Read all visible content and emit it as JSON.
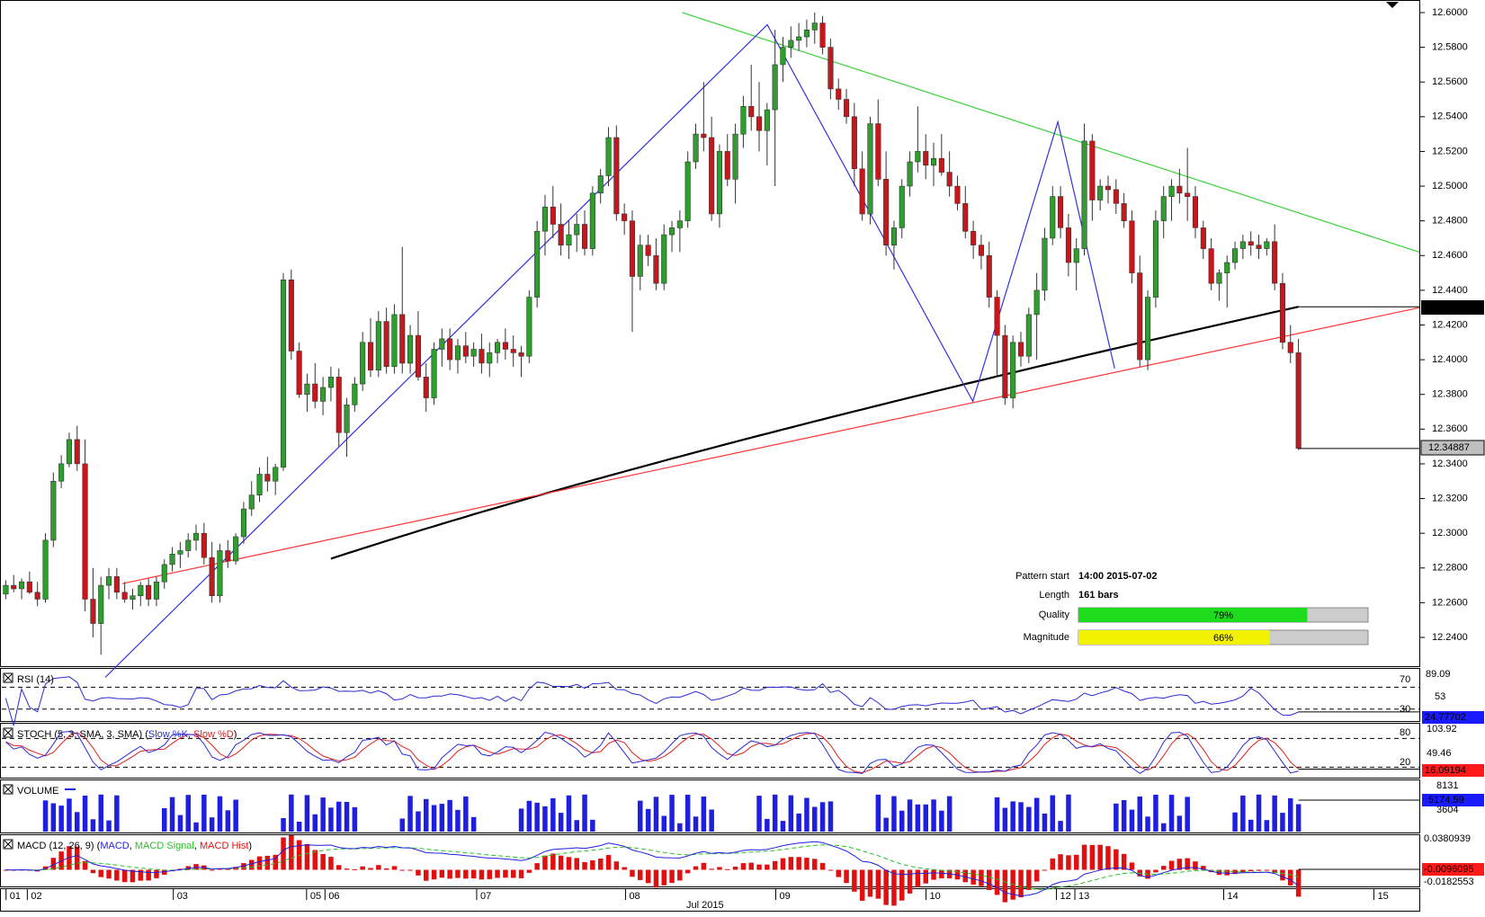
{
  "colors": {
    "bull": "#2e9e2e",
    "bear": "#c8161d",
    "resistance": "#3ad23a",
    "support": "#ff3333",
    "pattern": "#3333dd",
    "sma": "#000000",
    "rsi": "#2b2bd6",
    "stoch_k": "#2b2bd6",
    "stoch_d": "#e02020",
    "volume": "#1f1fe0",
    "macd": "#1f1fe0",
    "macd_signal": "#27c227",
    "macd_hist": "#e01010",
    "quality_fill": "#1cdc1c",
    "magnitude_fill": "#f2f200",
    "bar_bg": "#cccccc"
  },
  "price_axis": {
    "ticks": [
      "12.6000",
      "12.5800",
      "12.5600",
      "12.5400",
      "12.5200",
      "12.5000",
      "12.4800",
      "12.4600",
      "12.4400",
      "12.4200",
      "12.4000",
      "12.3800",
      "12.3600",
      "12.3400",
      "12.3200",
      "12.3000",
      "12.2800",
      "12.2600",
      "12.2400"
    ],
    "current_label": "12.43050",
    "last_label": "12.34887"
  },
  "pattern_info": {
    "start_label": "Pattern start",
    "start_value": "14:00 2015-07-02",
    "length_label": "Length",
    "length_value": "161 bars",
    "quality_label": "Quality",
    "quality_value": "79%",
    "quality": 0.79,
    "magnitude_label": "Magnitude",
    "magnitude_value": "66%",
    "magnitude": 0.66
  },
  "rsi": {
    "title": "RSI (14)",
    "levels": [
      "70",
      "30"
    ],
    "axis": [
      "89.09",
      "53"
    ],
    "value": "24.77702"
  },
  "stoch": {
    "title": "STOCH (5, 3, SMA, 3, SMA)",
    "k_label": "Slow %K",
    "d_label": "Slow %D",
    "levels": [
      "80",
      "20"
    ],
    "axis": [
      "103.92",
      "49.46"
    ],
    "value": "16.09194"
  },
  "volume": {
    "title": "VOLUME",
    "axis": [
      "8131",
      "3604"
    ],
    "value": "5174.59"
  },
  "macd": {
    "title": "MACD (12, 26, 9)",
    "macd_label": "MACD",
    "signal_label": "MACD Signal",
    "hist_label": "MACD Hist",
    "axis_top": "0.0380939",
    "axis_bottom": "-0.0182553",
    "value": "-0.0096095"
  },
  "x_axis": {
    "ticks": [
      "01",
      "02",
      "03",
      "05",
      "06",
      "07",
      "08",
      "09",
      "10",
      "12",
      "13",
      "14",
      "15"
    ],
    "month_label": "Jul 2015"
  },
  "chart_data": {
    "type": "candlestick",
    "symbol_price_range": [
      12.232,
      12.605
    ],
    "last_price": 12.34887,
    "sma_current": 12.4305,
    "trendlines": {
      "resistance": {
        "from": {
          "bar": 0.48,
          "price": 12.6
        },
        "to": {
          "bar": 1.0,
          "price": 12.462
        }
      },
      "support": {
        "from": {
          "bar": 0.085,
          "price": 12.271
        },
        "to": {
          "bar": 1.0,
          "price": 12.43
        }
      }
    },
    "zigzag": [
      {
        "bar": 0.073,
        "price": 12.217
      },
      {
        "bar": 0.54,
        "price": 12.593
      },
      {
        "bar": 0.685,
        "price": 12.376
      },
      {
        "bar": 0.745,
        "price": 12.537
      },
      {
        "bar": 0.785,
        "price": 12.395
      }
    ],
    "candles_ohlc": [
      [
        12.265,
        12.273,
        12.262,
        12.27
      ],
      [
        12.27,
        12.276,
        12.266,
        12.268
      ],
      [
        12.268,
        12.274,
        12.262,
        12.272
      ],
      [
        12.272,
        12.278,
        12.265,
        12.266
      ],
      [
        12.266,
        12.272,
        12.258,
        12.262
      ],
      [
        12.262,
        12.3,
        12.26,
        12.296
      ],
      [
        12.296,
        12.335,
        12.292,
        12.33
      ],
      [
        12.33,
        12.345,
        12.326,
        12.34
      ],
      [
        12.34,
        12.358,
        12.338,
        12.354
      ],
      [
        12.354,
        12.362,
        12.336,
        12.34
      ],
      [
        12.34,
        12.354,
        12.255,
        12.262
      ],
      [
        12.262,
        12.28,
        12.24,
        12.248
      ],
      [
        12.248,
        12.275,
        12.23,
        12.27
      ],
      [
        12.27,
        12.28,
        12.262,
        12.275
      ],
      [
        12.275,
        12.28,
        12.262,
        12.266
      ],
      [
        12.266,
        12.272,
        12.26,
        12.262
      ],
      [
        12.262,
        12.268,
        12.256,
        12.264
      ],
      [
        12.264,
        12.272,
        12.258,
        12.27
      ],
      [
        12.27,
        12.274,
        12.258,
        12.262
      ],
      [
        12.262,
        12.275,
        12.258,
        12.272
      ],
      [
        12.272,
        12.285,
        12.268,
        12.282
      ],
      [
        12.282,
        12.292,
        12.278,
        12.288
      ],
      [
        12.288,
        12.295,
        12.28,
        12.29
      ],
      [
        12.29,
        12.3,
        12.286,
        12.296
      ],
      [
        12.296,
        12.305,
        12.29,
        12.3
      ],
      [
        12.3,
        12.306,
        12.282,
        12.286
      ],
      [
        12.286,
        12.295,
        12.26,
        12.264
      ],
      [
        12.264,
        12.294,
        12.26,
        12.29
      ],
      [
        12.29,
        12.296,
        12.28,
        12.284
      ],
      [
        12.284,
        12.3,
        12.282,
        12.298
      ],
      [
        12.298,
        12.318,
        12.294,
        12.314
      ],
      [
        12.314,
        12.33,
        12.31,
        12.322
      ],
      [
        12.322,
        12.338,
        12.318,
        12.334
      ],
      [
        12.334,
        12.344,
        12.324,
        12.33
      ],
      [
        12.33,
        12.34,
        12.322,
        12.338
      ],
      [
        12.338,
        12.45,
        12.336,
        12.446
      ],
      [
        12.446,
        12.452,
        12.4,
        12.405
      ],
      [
        12.405,
        12.41,
        12.378,
        12.38
      ],
      [
        12.38,
        12.392,
        12.37,
        12.386
      ],
      [
        12.386,
        12.398,
        12.372,
        12.376
      ],
      [
        12.376,
        12.39,
        12.368,
        12.384
      ],
      [
        12.384,
        12.396,
        12.376,
        12.39
      ],
      [
        12.39,
        12.395,
        12.35,
        12.358
      ],
      [
        12.358,
        12.378,
        12.344,
        12.374
      ],
      [
        12.374,
        12.39,
        12.37,
        12.386
      ],
      [
        12.386,
        12.416,
        12.382,
        12.41
      ],
      [
        12.41,
        12.424,
        12.39,
        12.394
      ],
      [
        12.394,
        12.428,
        12.39,
        12.422
      ],
      [
        12.422,
        12.43,
        12.392,
        12.396
      ],
      [
        12.396,
        12.432,
        12.392,
        12.426
      ],
      [
        12.426,
        12.465,
        12.392,
        12.398
      ],
      [
        12.398,
        12.42,
        12.392,
        12.414
      ],
      [
        12.414,
        12.428,
        12.388,
        12.39
      ],
      [
        12.39,
        12.398,
        12.37,
        12.378
      ],
      [
        12.378,
        12.41,
        12.374,
        12.406
      ],
      [
        12.406,
        12.418,
        12.396,
        12.412
      ],
      [
        12.412,
        12.418,
        12.394,
        12.4
      ],
      [
        12.4,
        12.412,
        12.392,
        12.408
      ],
      [
        12.408,
        12.416,
        12.398,
        12.402
      ],
      [
        12.402,
        12.41,
        12.396,
        12.406
      ],
      [
        12.406,
        12.415,
        12.392,
        12.398
      ],
      [
        12.398,
        12.41,
        12.39,
        12.404
      ],
      [
        12.404,
        12.412,
        12.398,
        12.41
      ],
      [
        12.41,
        12.418,
        12.4,
        12.406
      ],
      [
        12.406,
        12.414,
        12.396,
        12.404
      ],
      [
        12.404,
        12.408,
        12.39,
        12.402
      ],
      [
        12.402,
        12.44,
        12.398,
        12.436
      ],
      [
        12.436,
        12.48,
        12.43,
        12.474
      ],
      [
        12.474,
        12.495,
        12.46,
        12.488
      ],
      [
        12.488,
        12.5,
        12.47,
        12.478
      ],
      [
        12.478,
        12.49,
        12.46,
        12.466
      ],
      [
        12.466,
        12.48,
        12.458,
        12.472
      ],
      [
        12.472,
        12.484,
        12.462,
        12.478
      ],
      [
        12.478,
        12.486,
        12.46,
        12.464
      ],
      [
        12.464,
        12.5,
        12.46,
        12.496
      ],
      [
        12.496,
        12.51,
        12.49,
        12.506
      ],
      [
        12.506,
        12.534,
        12.5,
        12.528
      ],
      [
        12.528,
        12.535,
        12.48,
        12.484
      ],
      [
        12.484,
        12.49,
        12.472,
        12.48
      ],
      [
        12.48,
        12.486,
        12.416,
        12.448
      ],
      [
        12.448,
        12.472,
        12.44,
        12.466
      ],
      [
        12.466,
        12.472,
        12.454,
        12.46
      ],
      [
        12.46,
        12.47,
        12.44,
        12.444
      ],
      [
        12.444,
        12.478,
        12.44,
        12.472
      ],
      [
        12.472,
        12.48,
        12.462,
        12.476
      ],
      [
        12.476,
        12.486,
        12.462,
        12.48
      ],
      [
        12.48,
        12.52,
        12.476,
        12.514
      ],
      [
        12.514,
        12.536,
        12.51,
        12.53
      ],
      [
        12.53,
        12.56,
        12.52,
        12.528
      ],
      [
        12.528,
        12.54,
        12.48,
        12.484
      ],
      [
        12.484,
        12.524,
        12.476,
        12.52
      ],
      [
        12.52,
        12.53,
        12.5,
        12.504
      ],
      [
        12.504,
        12.536,
        12.49,
        12.53
      ],
      [
        12.53,
        12.552,
        12.522,
        12.546
      ],
      [
        12.546,
        12.57,
        12.532,
        12.54
      ],
      [
        12.54,
        12.56,
        12.52,
        12.532
      ],
      [
        12.532,
        12.548,
        12.512,
        12.544
      ],
      [
        12.544,
        12.59,
        12.5,
        12.57
      ],
      [
        12.57,
        12.586,
        12.56,
        12.58
      ],
      [
        12.58,
        12.592,
        12.574,
        12.584
      ],
      [
        12.584,
        12.594,
        12.578,
        12.586
      ],
      [
        12.586,
        12.596,
        12.58,
        12.59
      ],
      [
        12.59,
        12.6,
        12.582,
        12.594
      ],
      [
        12.594,
        12.598,
        12.576,
        12.58
      ],
      [
        12.58,
        12.585,
        12.55,
        12.556
      ],
      [
        12.556,
        12.562,
        12.544,
        12.55
      ],
      [
        12.55,
        12.556,
        12.536,
        12.54
      ],
      [
        12.54,
        12.548,
        12.5,
        12.51
      ],
      [
        12.51,
        12.52,
        12.48,
        12.484
      ],
      [
        12.484,
        12.54,
        12.478,
        12.536
      ],
      [
        12.536,
        12.55,
        12.5,
        12.504
      ],
      [
        12.504,
        12.52,
        12.46,
        12.466
      ],
      [
        12.466,
        12.48,
        12.452,
        12.476
      ],
      [
        12.476,
        12.504,
        12.47,
        12.5
      ],
      [
        12.5,
        12.52,
        12.494,
        12.514
      ],
      [
        12.514,
        12.546,
        12.508,
        12.52
      ],
      [
        12.52,
        12.53,
        12.504,
        12.512
      ],
      [
        12.512,
        12.525,
        12.5,
        12.516
      ],
      [
        12.516,
        12.53,
        12.506,
        12.508
      ],
      [
        12.508,
        12.52,
        12.494,
        12.5
      ],
      [
        12.5,
        12.506,
        12.486,
        12.49
      ],
      [
        12.49,
        12.5,
        12.47,
        12.474
      ],
      [
        12.474,
        12.48,
        12.458,
        12.466
      ],
      [
        12.466,
        12.472,
        12.452,
        12.46
      ],
      [
        12.46,
        12.468,
        12.43,
        12.436
      ],
      [
        12.436,
        12.44,
        12.39,
        12.414
      ],
      [
        12.414,
        12.42,
        12.374,
        12.378
      ],
      [
        12.378,
        12.414,
        12.372,
        12.41
      ],
      [
        12.41,
        12.416,
        12.396,
        12.402
      ],
      [
        12.402,
        12.43,
        12.398,
        12.426
      ],
      [
        12.426,
        12.45,
        12.4,
        12.44
      ],
      [
        12.44,
        12.476,
        12.434,
        12.47
      ],
      [
        12.47,
        12.5,
        12.466,
        12.494
      ],
      [
        12.494,
        12.5,
        12.47,
        12.476
      ],
      [
        12.476,
        12.484,
        12.448,
        12.456
      ],
      [
        12.456,
        12.47,
        12.44,
        12.464
      ],
      [
        12.464,
        12.536,
        12.46,
        12.526
      ],
      [
        12.526,
        12.53,
        12.48,
        12.492
      ],
      [
        12.492,
        12.504,
        12.486,
        12.5
      ],
      [
        12.5,
        12.506,
        12.49,
        12.498
      ],
      [
        12.498,
        12.504,
        12.484,
        12.49
      ],
      [
        12.49,
        12.496,
        12.476,
        12.48
      ],
      [
        12.48,
        12.486,
        12.444,
        12.45
      ],
      [
        12.45,
        12.46,
        12.396,
        12.4
      ],
      [
        12.4,
        12.44,
        12.394,
        12.436
      ],
      [
        12.436,
        12.486,
        12.43,
        12.48
      ],
      [
        12.48,
        12.5,
        12.47,
        12.494
      ],
      [
        12.494,
        12.504,
        12.48,
        12.5
      ],
      [
        12.5,
        12.51,
        12.49,
        12.496
      ],
      [
        12.496,
        12.522,
        12.48,
        12.494
      ],
      [
        12.494,
        12.5,
        12.47,
        12.476
      ],
      [
        12.476,
        12.48,
        12.458,
        12.464
      ],
      [
        12.464,
        12.47,
        12.44,
        12.444
      ],
      [
        12.444,
        12.452,
        12.434,
        12.45
      ],
      [
        12.45,
        12.46,
        12.43,
        12.456
      ],
      [
        12.456,
        12.468,
        12.452,
        12.464
      ],
      [
        12.464,
        12.472,
        12.458,
        12.468
      ],
      [
        12.468,
        12.474,
        12.46,
        12.466
      ],
      [
        12.466,
        12.472,
        12.458,
        12.464
      ],
      [
        12.464,
        12.47,
        12.46,
        12.468
      ],
      [
        12.468,
        12.478,
        12.44,
        12.444
      ],
      [
        12.444,
        12.45,
        12.406,
        12.41
      ],
      [
        12.41,
        12.42,
        12.398,
        12.404
      ],
      [
        12.404,
        12.412,
        12.348,
        12.34887
      ]
    ]
  }
}
